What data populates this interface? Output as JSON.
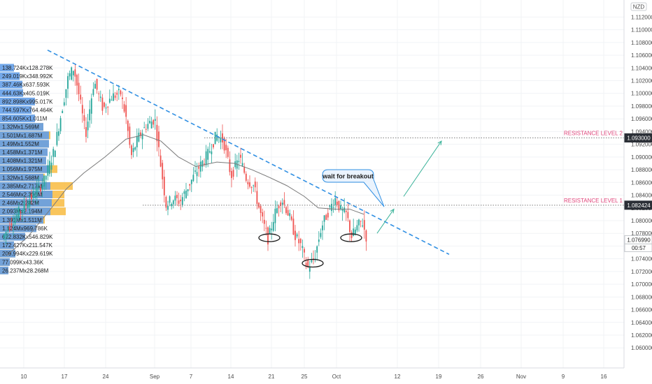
{
  "chart_data": {
    "type": "candlestick",
    "currency_badge": "NZD",
    "y_axis": {
      "min": 1.0575,
      "max": 1.1138,
      "ticks": [
        1.112,
        1.11,
        1.108,
        1.106,
        1.104,
        1.102,
        1.1,
        1.098,
        1.096,
        1.094,
        1.092,
        1.09,
        1.088,
        1.086,
        1.084,
        1.082,
        1.08,
        1.078,
        1.076,
        1.074,
        1.072,
        1.07,
        1.068,
        1.066,
        1.064,
        1.062,
        1.06
      ],
      "tick_labels": [
        "1.112000",
        "1.110000",
        "1.108000",
        "1.106000",
        "1.104000",
        "1.102000",
        "1.100000",
        "1.098000",
        "1.096000",
        "1.094000",
        "1.092000",
        "1.090000",
        "1.088000",
        "1.086000",
        "1.084000",
        "1.082000",
        "1.080000",
        "1.078000",
        "1.076000",
        "1.074000",
        "1.072000",
        "1.070000",
        "1.068000",
        "1.066000",
        "1.064000",
        "1.062000",
        "1.060000"
      ]
    },
    "x_axis": {
      "labels": [
        "10",
        "17",
        "24",
        "Sep",
        "7",
        "14",
        "21",
        "25",
        "Oct",
        "12",
        "19",
        "26",
        "Nov",
        "9",
        "16"
      ]
    },
    "price_tags": [
      {
        "value": 1.093,
        "label": "1.093000"
      },
      {
        "value": 1.082424,
        "label": "1.082424"
      },
      {
        "value": 1.07699,
        "label": "1.076990",
        "countdown": "00:57"
      }
    ],
    "resistance_levels": [
      {
        "label": "RESISTANCE LEVEL 2",
        "value": 1.093
      },
      {
        "label": "RESISTANCE LEVEL 1",
        "value": 1.08242
      }
    ],
    "annotation": "wait for breakout",
    "volume_profile": [
      "138.724Kx128.278K",
      "249.019Kx348.992K",
      "387.46Kx637.593K",
      "444.63Kx405.019K",
      "892.898Kx995.017K",
      "744.597Kx764.464K",
      "854.605Kx1.011M",
      "1.32Mx1.569M",
      "1.501Mx1.687M",
      "1.49Mx1.552M",
      "1.458Mx1.371M",
      "1.408Mx1.321M",
      "1.056Mx1.975M",
      "1.32Mx1.568M",
      "2.385Mx2.717M",
      "2.546Mx2.306M",
      "2.46Mx2.282M",
      "2.093Mx2.194M",
      "1.391Mx1.511M",
      "1.124Mx969.786K",
      "622.832Kx546.829K",
      "172.427Kx211.547K",
      "209.994Kx229.619K",
      "77.099Kx43.36K",
      "26.237Mx28.268M"
    ],
    "colors": {
      "up": "#26a69a",
      "down": "#ef5350",
      "trendline": "#2f8fe3",
      "moving_average": "#7a7a7a",
      "resistance_label": "#e0457b",
      "projection": "#3bb39a",
      "vp_blue": "#5b9bef",
      "vp_orange": "#f7b733"
    }
  }
}
